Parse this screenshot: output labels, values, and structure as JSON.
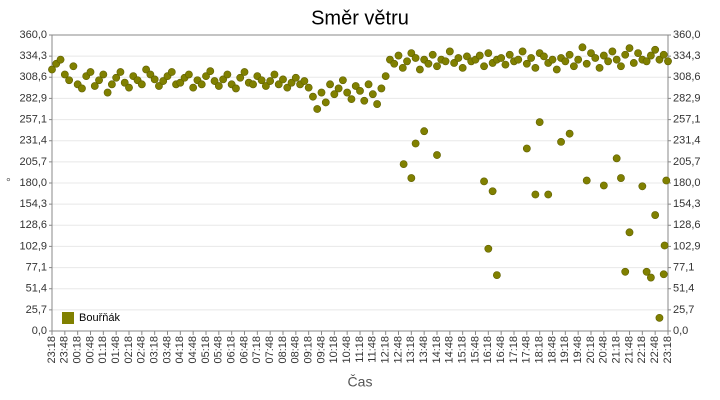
{
  "chart_data": {
    "type": "scatter",
    "title": "Směr větru",
    "x_label": "Čas",
    "y_label": "°",
    "xlim": [
      0,
      1440
    ],
    "ylim": [
      0,
      360
    ],
    "grid": true,
    "legend": "lower left",
    "xticks": [
      {
        "value": 0,
        "label": "23:18"
      },
      {
        "value": 30,
        "label": "23:48"
      },
      {
        "value": 60,
        "label": "00:18"
      },
      {
        "value": 90,
        "label": "00:48"
      },
      {
        "value": 120,
        "label": "01:18"
      },
      {
        "value": 150,
        "label": "01:48"
      },
      {
        "value": 180,
        "label": "02:18"
      },
      {
        "value": 210,
        "label": "02:48"
      },
      {
        "value": 240,
        "label": "03:18"
      },
      {
        "value": 270,
        "label": "03:48"
      },
      {
        "value": 300,
        "label": "04:18"
      },
      {
        "value": 330,
        "label": "04:48"
      },
      {
        "value": 360,
        "label": "05:18"
      },
      {
        "value": 390,
        "label": "05:48"
      },
      {
        "value": 420,
        "label": "06:18"
      },
      {
        "value": 450,
        "label": "06:48"
      },
      {
        "value": 480,
        "label": "07:18"
      },
      {
        "value": 510,
        "label": "07:48"
      },
      {
        "value": 540,
        "label": "08:18"
      },
      {
        "value": 570,
        "label": "08:48"
      },
      {
        "value": 600,
        "label": "09:18"
      },
      {
        "value": 630,
        "label": "09:48"
      },
      {
        "value": 660,
        "label": "10:18"
      },
      {
        "value": 690,
        "label": "10:48"
      },
      {
        "value": 720,
        "label": "11:18"
      },
      {
        "value": 750,
        "label": "11:48"
      },
      {
        "value": 780,
        "label": "12:18"
      },
      {
        "value": 810,
        "label": "12:48"
      },
      {
        "value": 840,
        "label": "13:18"
      },
      {
        "value": 870,
        "label": "13:48"
      },
      {
        "value": 900,
        "label": "14:18"
      },
      {
        "value": 930,
        "label": "14:48"
      },
      {
        "value": 960,
        "label": "15:18"
      },
      {
        "value": 990,
        "label": "15:48"
      },
      {
        "value": 1020,
        "label": "16:18"
      },
      {
        "value": 1050,
        "label": "16:48"
      },
      {
        "value": 1080,
        "label": "17:18"
      },
      {
        "value": 1110,
        "label": "17:48"
      },
      {
        "value": 1140,
        "label": "18:18"
      },
      {
        "value": 1170,
        "label": "18:48"
      },
      {
        "value": 1200,
        "label": "19:18"
      },
      {
        "value": 1230,
        "label": "19:48"
      },
      {
        "value": 1260,
        "label": "20:18"
      },
      {
        "value": 1290,
        "label": "20:48"
      },
      {
        "value": 1320,
        "label": "21:18"
      },
      {
        "value": 1350,
        "label": "21:48"
      },
      {
        "value": 1380,
        "label": "22:18"
      },
      {
        "value": 1410,
        "label": "22:48"
      },
      {
        "value": 1440,
        "label": "23:18"
      }
    ],
    "yticks": [
      {
        "value": 0,
        "label": "0,0"
      },
      {
        "value": 25.7,
        "label": "25,7"
      },
      {
        "value": 51.4,
        "label": "51,4"
      },
      {
        "value": 77.1,
        "label": "77,1"
      },
      {
        "value": 102.9,
        "label": "102,9"
      },
      {
        "value": 128.6,
        "label": "128,6"
      },
      {
        "value": 154.3,
        "label": "154,3"
      },
      {
        "value": 180,
        "label": "180,0"
      },
      {
        "value": 205.7,
        "label": "205,7"
      },
      {
        "value": 231.4,
        "label": "231,4"
      },
      {
        "value": 257.1,
        "label": "257,1"
      },
      {
        "value": 282.9,
        "label": "282,9"
      },
      {
        "value": 308.6,
        "label": "308,6"
      },
      {
        "value": 334.3,
        "label": "334,3"
      },
      {
        "value": 360,
        "label": "360,0"
      }
    ],
    "x": [
      0,
      10,
      20,
      30,
      40,
      50,
      60,
      70,
      80,
      90,
      100,
      110,
      120,
      130,
      140,
      150,
      160,
      170,
      180,
      190,
      200,
      210,
      220,
      230,
      240,
      250,
      260,
      270,
      280,
      290,
      300,
      310,
      320,
      330,
      340,
      350,
      360,
      370,
      380,
      390,
      400,
      410,
      420,
      430,
      440,
      450,
      460,
      470,
      480,
      490,
      500,
      510,
      520,
      530,
      540,
      550,
      560,
      570,
      580,
      590,
      600,
      610,
      620,
      630,
      640,
      650,
      660,
      670,
      680,
      690,
      700,
      710,
      720,
      730,
      740,
      750,
      760,
      770,
      780,
      790,
      800,
      810,
      820,
      830,
      840,
      850,
      860,
      870,
      880,
      890,
      900,
      910,
      920,
      930,
      940,
      950,
      960,
      970,
      980,
      990,
      1000,
      1010,
      1020,
      1030,
      1040,
      1050,
      1060,
      1070,
      1080,
      1090,
      1100,
      1110,
      1120,
      1130,
      1140,
      1150,
      1160,
      1170,
      1180,
      1190,
      1200,
      1210,
      1220,
      1230,
      1240,
      1250,
      1260,
      1270,
      1280,
      1290,
      1300,
      1310,
      1320,
      1330,
      1340,
      1350,
      1360,
      1370,
      1380,
      1390,
      1400,
      1410,
      1420,
      1430,
      1440,
      822,
      840,
      850,
      870,
      900,
      1010,
      1020,
      1030,
      1040,
      1110,
      1130,
      1140,
      1160,
      1190,
      1210,
      1250,
      1290,
      1320,
      1330,
      1340,
      1350,
      1380,
      1390,
      1400,
      1410,
      1420,
      1430,
      1432,
      1436
    ],
    "series": [
      {
        "name": "Bouřňák",
        "color": "#808000",
        "values": [
          318,
          325,
          330,
          312,
          305,
          322,
          300,
          295,
          310,
          315,
          298,
          305,
          312,
          290,
          300,
          308,
          315,
          302,
          296,
          310,
          305,
          300,
          318,
          312,
          306,
          298,
          304,
          310,
          315,
          300,
          302,
          308,
          312,
          296,
          305,
          300,
          310,
          316,
          304,
          298,
          306,
          312,
          300,
          295,
          308,
          315,
          302,
          300,
          310,
          305,
          298,
          304,
          312,
          300,
          306,
          296,
          302,
          308,
          300,
          304,
          296,
          285,
          270,
          290,
          278,
          300,
          288,
          295,
          305,
          290,
          282,
          298,
          292,
          280,
          300,
          288,
          276,
          295,
          310,
          330,
          325,
          335,
          320,
          328,
          338,
          332,
          318,
          330,
          325,
          336,
          322,
          330,
          328,
          340,
          326,
          332,
          320,
          334,
          328,
          330,
          335,
          322,
          338,
          326,
          330,
          332,
          324,
          336,
          328,
          330,
          340,
          325,
          332,
          320,
          338,
          334,
          326,
          330,
          318,
          332,
          328,
          336,
          322,
          330,
          345,
          325,
          338,
          332,
          320,
          335,
          328,
          340,
          330,
          322,
          336,
          344,
          326,
          338,
          330,
          328,
          335,
          342,
          330,
          336,
          328,
          203,
          186,
          228,
          243,
          214,
          182,
          100,
          170,
          68,
          222,
          166,
          254,
          166,
          230,
          240,
          183,
          177,
          210,
          186,
          72,
          120,
          176,
          72,
          65,
          141,
          16,
          69,
          104,
          183
        ]
      }
    ]
  }
}
